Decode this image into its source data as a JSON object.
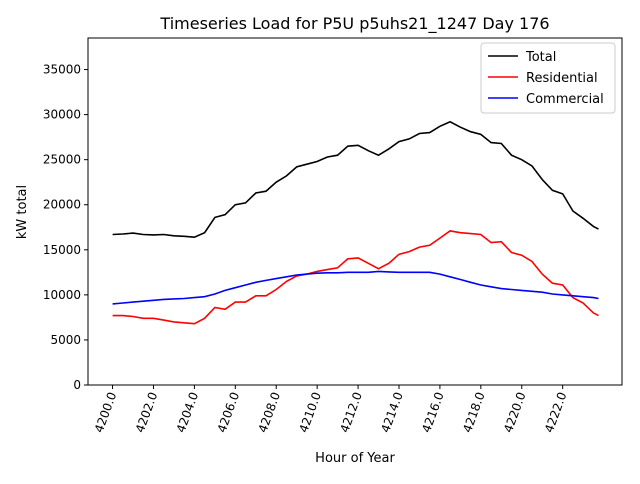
{
  "chart_data": {
    "type": "line",
    "title": "Timeseries Load for P5U p5uhs21_1247  Day 176",
    "xlabel": "Hour of Year",
    "ylabel": "kW total",
    "xlim": [
      4198.8,
      4224.9
    ],
    "ylim": [
      0,
      38500
    ],
    "xticks": [
      4200,
      4202,
      4204,
      4206,
      4208,
      4210,
      4212,
      4214,
      4216,
      4218,
      4220,
      4222
    ],
    "xtick_labels": [
      "4200.0",
      "4202.0",
      "4204.0",
      "4206.0",
      "4208.0",
      "4210.0",
      "4212.0",
      "4214.0",
      "4216.0",
      "4218.0",
      "4220.0",
      "4222.0"
    ],
    "yticks": [
      0,
      5000,
      10000,
      15000,
      20000,
      25000,
      30000,
      35000
    ],
    "ytick_labels": [
      "0",
      "5000",
      "10000",
      "15000",
      "20000",
      "25000",
      "30000",
      "35000"
    ],
    "grid": false,
    "legend_position": "top-right",
    "x": [
      4200,
      4200.5,
      4201,
      4201.5,
      4202,
      4202.5,
      4203,
      4203.5,
      4204,
      4204.5,
      4205,
      4205.5,
      4206,
      4206.5,
      4207,
      4207.5,
      4208,
      4208.5,
      4209,
      4209.5,
      4210,
      4210.5,
      4211,
      4211.5,
      4212,
      4212.5,
      4213,
      4213.5,
      4214,
      4214.5,
      4215,
      4215.5,
      4216,
      4216.5,
      4217,
      4217.5,
      4218,
      4218.5,
      4219,
      4219.5,
      4220,
      4220.5,
      4221,
      4221.5,
      4222,
      4222.5,
      4223,
      4223.5,
      4223.75
    ],
    "series": [
      {
        "name": "Total",
        "color": "#000000",
        "values": [
          16700,
          16750,
          16850,
          16700,
          16650,
          16700,
          16550,
          16500,
          16400,
          16900,
          18600,
          18900,
          20000,
          20200,
          21300,
          21500,
          22500,
          23200,
          24200,
          24500,
          24800,
          25300,
          25500,
          26500,
          26600,
          26000,
          25500,
          26200,
          27000,
          27300,
          27900,
          28000,
          28700,
          29200,
          28600,
          28100,
          27800,
          26900,
          26800,
          25500,
          25000,
          24300,
          22800,
          21600,
          21200,
          19300,
          18500,
          17600,
          17300
        ]
      },
      {
        "name": "Residential",
        "color": "#ff0000",
        "values": [
          7700,
          7700,
          7600,
          7400,
          7400,
          7200,
          7000,
          6900,
          6800,
          7400,
          8600,
          8400,
          9200,
          9200,
          9900,
          9900,
          10600,
          11500,
          12100,
          12300,
          12600,
          12800,
          13000,
          14000,
          14100,
          13500,
          12900,
          13500,
          14500,
          14800,
          15300,
          15500,
          16300,
          17100,
          16900,
          16800,
          16700,
          15800,
          15900,
          14700,
          14400,
          13700,
          12300,
          11300,
          11100,
          9700,
          9100,
          8000,
          7700
        ]
      },
      {
        "name": "Commercial",
        "color": "#0000ff",
        "values": [
          9000,
          9100,
          9200,
          9300,
          9400,
          9500,
          9550,
          9600,
          9700,
          9800,
          10100,
          10500,
          10800,
          11100,
          11400,
          11600,
          11800,
          12000,
          12200,
          12300,
          12400,
          12450,
          12450,
          12500,
          12500,
          12500,
          12600,
          12550,
          12500,
          12500,
          12500,
          12500,
          12300,
          12000,
          11700,
          11400,
          11100,
          10900,
          10700,
          10600,
          10500,
          10400,
          10300,
          10100,
          10000,
          9900,
          9800,
          9700,
          9600
        ]
      }
    ]
  }
}
